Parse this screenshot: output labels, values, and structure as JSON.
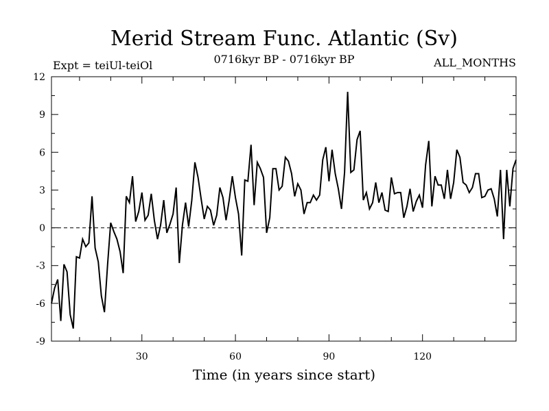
{
  "chart_data": {
    "type": "line",
    "title": "Merid Stream Func. Atlantic (Sv)",
    "subtitle_left": "Expt = teiUl-teiOl",
    "subtitle_center": "0716kyr BP - 0716kyr BP",
    "subtitle_right": "ALL_MONTHS",
    "xlabel": "Time (in years since start)",
    "ylabel": "",
    "xlim": [
      1,
      150
    ],
    "ylim": [
      -9,
      12
    ],
    "xticks": [
      30,
      60,
      90,
      120
    ],
    "yticks": [
      -9,
      -6,
      -3,
      0,
      3,
      6,
      9,
      12
    ],
    "zero_line": {
      "value": 0,
      "style": "dashed"
    },
    "series": [
      {
        "name": "Merid Stream Func. Atlantic",
        "x": [
          1,
          2,
          3,
          4,
          5,
          6,
          7,
          8,
          9,
          10,
          11,
          12,
          13,
          14,
          15,
          16,
          17,
          18,
          19,
          20,
          21,
          22,
          23,
          24,
          25,
          26,
          27,
          28,
          29,
          30,
          31,
          32,
          33,
          34,
          35,
          36,
          37,
          38,
          39,
          40,
          41,
          42,
          43,
          44,
          45,
          46,
          47,
          48,
          49,
          50,
          51,
          52,
          53,
          54,
          55,
          56,
          57,
          58,
          59,
          60,
          61,
          62,
          63,
          64,
          65,
          66,
          67,
          68,
          69,
          70,
          71,
          72,
          73,
          74,
          75,
          76,
          77,
          78,
          79,
          80,
          81,
          82,
          83,
          84,
          85,
          86,
          87,
          88,
          89,
          90,
          91,
          92,
          93,
          94,
          95,
          96,
          97,
          98,
          99,
          100,
          101,
          102,
          103,
          104,
          105,
          106,
          107,
          108,
          109,
          110,
          111,
          112,
          113,
          114,
          115,
          116,
          117,
          118,
          119,
          120,
          121,
          122,
          123,
          124,
          125,
          126,
          127,
          128,
          129,
          130,
          131,
          132,
          133,
          134,
          135,
          136,
          137,
          138,
          139,
          140,
          141,
          142,
          143,
          144,
          145,
          146,
          147,
          148,
          149,
          150
        ],
        "values": [
          -6.0,
          -4.8,
          -4.1,
          -7.4,
          -2.9,
          -3.5,
          -6.9,
          -8.0,
          -2.3,
          -2.4,
          -0.9,
          -1.5,
          -1.2,
          2.5,
          -1.6,
          -2.7,
          -5.4,
          -6.7,
          -2.9,
          0.4,
          -0.3,
          -0.9,
          -1.9,
          -3.6,
          2.5,
          2.0,
          4.1,
          0.5,
          1.3,
          2.8,
          0.6,
          1.0,
          2.7,
          0.6,
          -0.9,
          0.2,
          2.2,
          -0.4,
          0.3,
          1.1,
          3.2,
          -2.8,
          0.2,
          2.0,
          0.1,
          2.2,
          5.2,
          4.0,
          2.3,
          0.7,
          1.7,
          1.4,
          0.2,
          1.0,
          3.2,
          2.4,
          0.6,
          2.2,
          4.1,
          2.4,
          1.1,
          -2.2,
          3.8,
          3.7,
          6.6,
          1.8,
          5.2,
          4.7,
          4.0,
          -0.4,
          0.8,
          4.7,
          4.7,
          3.0,
          3.3,
          5.6,
          5.3,
          4.3,
          2.5,
          3.5,
          3.0,
          1.1,
          2.0,
          2.0,
          2.6,
          2.2,
          2.6,
          5.4,
          6.4,
          3.7,
          6.2,
          4.3,
          3.1,
          1.5,
          4.4,
          10.8,
          4.4,
          4.6,
          7.0,
          7.7,
          2.2,
          2.8,
          1.5,
          2.0,
          3.6,
          2.0,
          2.8,
          1.4,
          1.3,
          4.0,
          2.7,
          2.8,
          2.8,
          0.8,
          1.7,
          3.1,
          1.3,
          2.1,
          2.6,
          1.6,
          5.0,
          6.9,
          1.7,
          4.1,
          3.4,
          3.4,
          2.3,
          4.6,
          2.3,
          3.6,
          6.2,
          5.6,
          3.6,
          3.4,
          2.8,
          3.2,
          4.3,
          4.3,
          2.4,
          2.5,
          3.0,
          3.1,
          2.3,
          0.9,
          4.6,
          -0.9,
          4.6,
          1.7,
          4.7,
          5.4
        ]
      }
    ]
  }
}
